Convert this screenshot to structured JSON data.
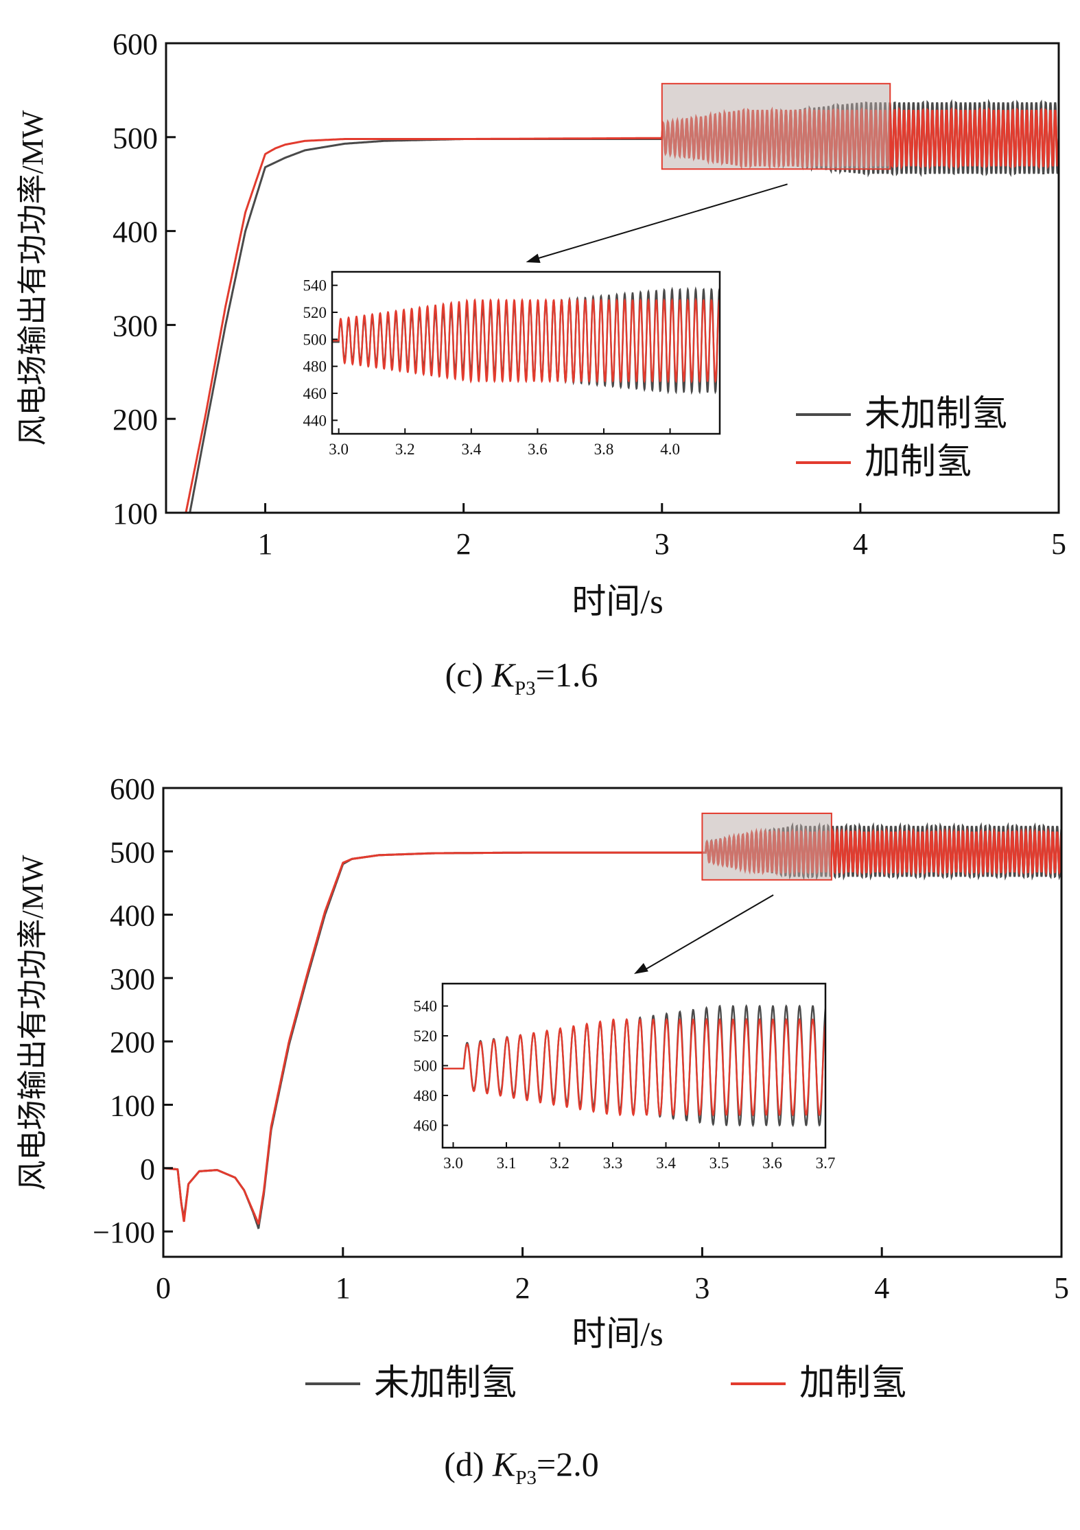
{
  "colors": {
    "no_hydrogen": "#4a4a4a",
    "hydrogen": "#e23b2e",
    "zoom_box_fill": "#b9aca8",
    "zoom_box_stroke": "#e23b2e",
    "axis": "#111111"
  },
  "chart_data": [
    {
      "type": "line",
      "caption": {
        "label_prefix": "(c) ",
        "var": "K",
        "sub": "P3",
        "eq": "=1.6"
      },
      "xlabel": "时间/s",
      "ylabel": "风电场输出有功功率/MW",
      "xlim": [
        0.5,
        5
      ],
      "ylim": [
        100,
        600
      ],
      "xticks": [
        "1",
        "2",
        "3",
        "4",
        "5"
      ],
      "xtick_values": [
        1,
        2,
        3,
        4,
        5
      ],
      "yticks": [
        "100",
        "200",
        "300",
        "400",
        "500",
        "600"
      ],
      "ytick_values": [
        100,
        200,
        300,
        400,
        500,
        600
      ],
      "legend": {
        "placement": "inside-bottom-right",
        "items": [
          "未加制氢",
          "加制氢"
        ]
      },
      "series": [
        {
          "name": "未加制氢",
          "color_key": "no_hydrogen",
          "x": [
            0.62,
            0.7,
            0.8,
            0.9,
            1.0,
            1.1,
            1.2,
            1.4,
            1.6,
            2.0,
            2.5,
            3.0
          ],
          "y": [
            100,
            190,
            300,
            400,
            468,
            478,
            486,
            493,
            496,
            498,
            498,
            498
          ],
          "oscillation": {
            "start": 3.0,
            "freq_hz": 42,
            "center": 499,
            "amp_start": 14,
            "amp_end": 38,
            "amp_rise_until": 4.0
          }
        },
        {
          "name": "加制氢",
          "color_key": "hydrogen",
          "x": [
            0.6,
            0.7,
            0.8,
            0.9,
            1.0,
            1.05,
            1.1,
            1.2,
            1.4,
            2.0,
            3.0
          ],
          "y": [
            100,
            205,
            320,
            420,
            482,
            488,
            492,
            496,
            498,
            498,
            499
          ],
          "oscillation": {
            "start": 3.0,
            "freq_hz": 42,
            "center": 499,
            "amp_start": 16,
            "amp_end": 30,
            "amp_rise_until": 3.4
          }
        }
      ],
      "zoom_box": {
        "x": [
          3.0,
          4.15
        ],
        "y": [
          466,
          557
        ]
      },
      "inset": {
        "xlim": [
          2.98,
          4.15
        ],
        "ylim": [
          430,
          550
        ],
        "xticks": [
          "3.0",
          "3.2",
          "3.4",
          "3.6",
          "3.8",
          "4.0"
        ],
        "xtick_values": [
          3.0,
          3.2,
          3.4,
          3.6,
          3.8,
          4.0
        ],
        "yticks": [
          "440",
          "460",
          "480",
          "500",
          "520",
          "540"
        ],
        "ytick_values": [
          440,
          460,
          480,
          500,
          520,
          540
        ]
      }
    },
    {
      "type": "line",
      "caption": {
        "label_prefix": "(d) ",
        "var": "K",
        "sub": "P3",
        "eq": "=2.0"
      },
      "xlabel": "时间/s",
      "ylabel": "风电场输出有功功率/MW",
      "xlim": [
        0,
        5
      ],
      "ylim": [
        -140,
        600
      ],
      "xticks": [
        "0",
        "1",
        "2",
        "3",
        "4",
        "5"
      ],
      "xtick_values": [
        0,
        1,
        2,
        3,
        4,
        5
      ],
      "yticks": [
        "−100",
        "0",
        "100",
        "200",
        "300",
        "400",
        "500",
        "600"
      ],
      "ytick_values": [
        -100,
        0,
        100,
        200,
        300,
        400,
        500,
        600
      ],
      "legend": {
        "placement": "below-plot",
        "items": [
          "未加制氢",
          "加制氢"
        ]
      },
      "series": [
        {
          "name": "未加制氢",
          "color_key": "no_hydrogen",
          "x": [
            0,
            0.08,
            0.1,
            0.115,
            0.14,
            0.2,
            0.3,
            0.4,
            0.45,
            0.5,
            0.53,
            0.56,
            0.6,
            0.7,
            0.8,
            0.9,
            1.0,
            1.05,
            1.2,
            1.5,
            2.0,
            3.0
          ],
          "y": [
            0,
            -2,
            -55,
            -80,
            -25,
            -5,
            -3,
            -15,
            -35,
            -70,
            -95,
            -40,
            60,
            195,
            300,
            400,
            480,
            488,
            494,
            497,
            498,
            498
          ],
          "oscillation": {
            "start": 3.02,
            "freq_hz": 40,
            "center": 500,
            "amp_start": 15,
            "amp_end": 40,
            "amp_rise_until": 3.5
          }
        },
        {
          "name": "加制氢",
          "color_key": "hydrogen",
          "x": [
            0,
            0.08,
            0.1,
            0.115,
            0.14,
            0.2,
            0.3,
            0.4,
            0.45,
            0.5,
            0.53,
            0.56,
            0.6,
            0.7,
            0.8,
            0.9,
            1.0,
            1.05,
            1.2,
            1.5,
            2.0,
            3.0
          ],
          "y": [
            0,
            -2,
            -55,
            -85,
            -25,
            -5,
            -3,
            -15,
            -35,
            -68,
            -88,
            -35,
            65,
            200,
            305,
            405,
            482,
            488,
            494,
            497,
            498,
            498
          ],
          "oscillation": {
            "start": 3.02,
            "freq_hz": 40,
            "center": 499,
            "amp_start": 15,
            "amp_end": 32,
            "amp_rise_until": 3.3
          }
        }
      ],
      "zoom_box": {
        "x": [
          3.0,
          3.72
        ],
        "y": [
          455,
          560
        ]
      },
      "inset": {
        "xlim": [
          2.98,
          3.7
        ],
        "ylim": [
          445,
          555
        ],
        "xticks": [
          "3.0",
          "3.1",
          "3.2",
          "3.3",
          "3.4",
          "3.5",
          "3.6",
          "3.7"
        ],
        "xtick_values": [
          3.0,
          3.1,
          3.2,
          3.3,
          3.4,
          3.5,
          3.6,
          3.7
        ],
        "yticks": [
          "460",
          "480",
          "500",
          "520",
          "540"
        ],
        "ytick_values": [
          460,
          480,
          500,
          520,
          540
        ]
      }
    }
  ]
}
